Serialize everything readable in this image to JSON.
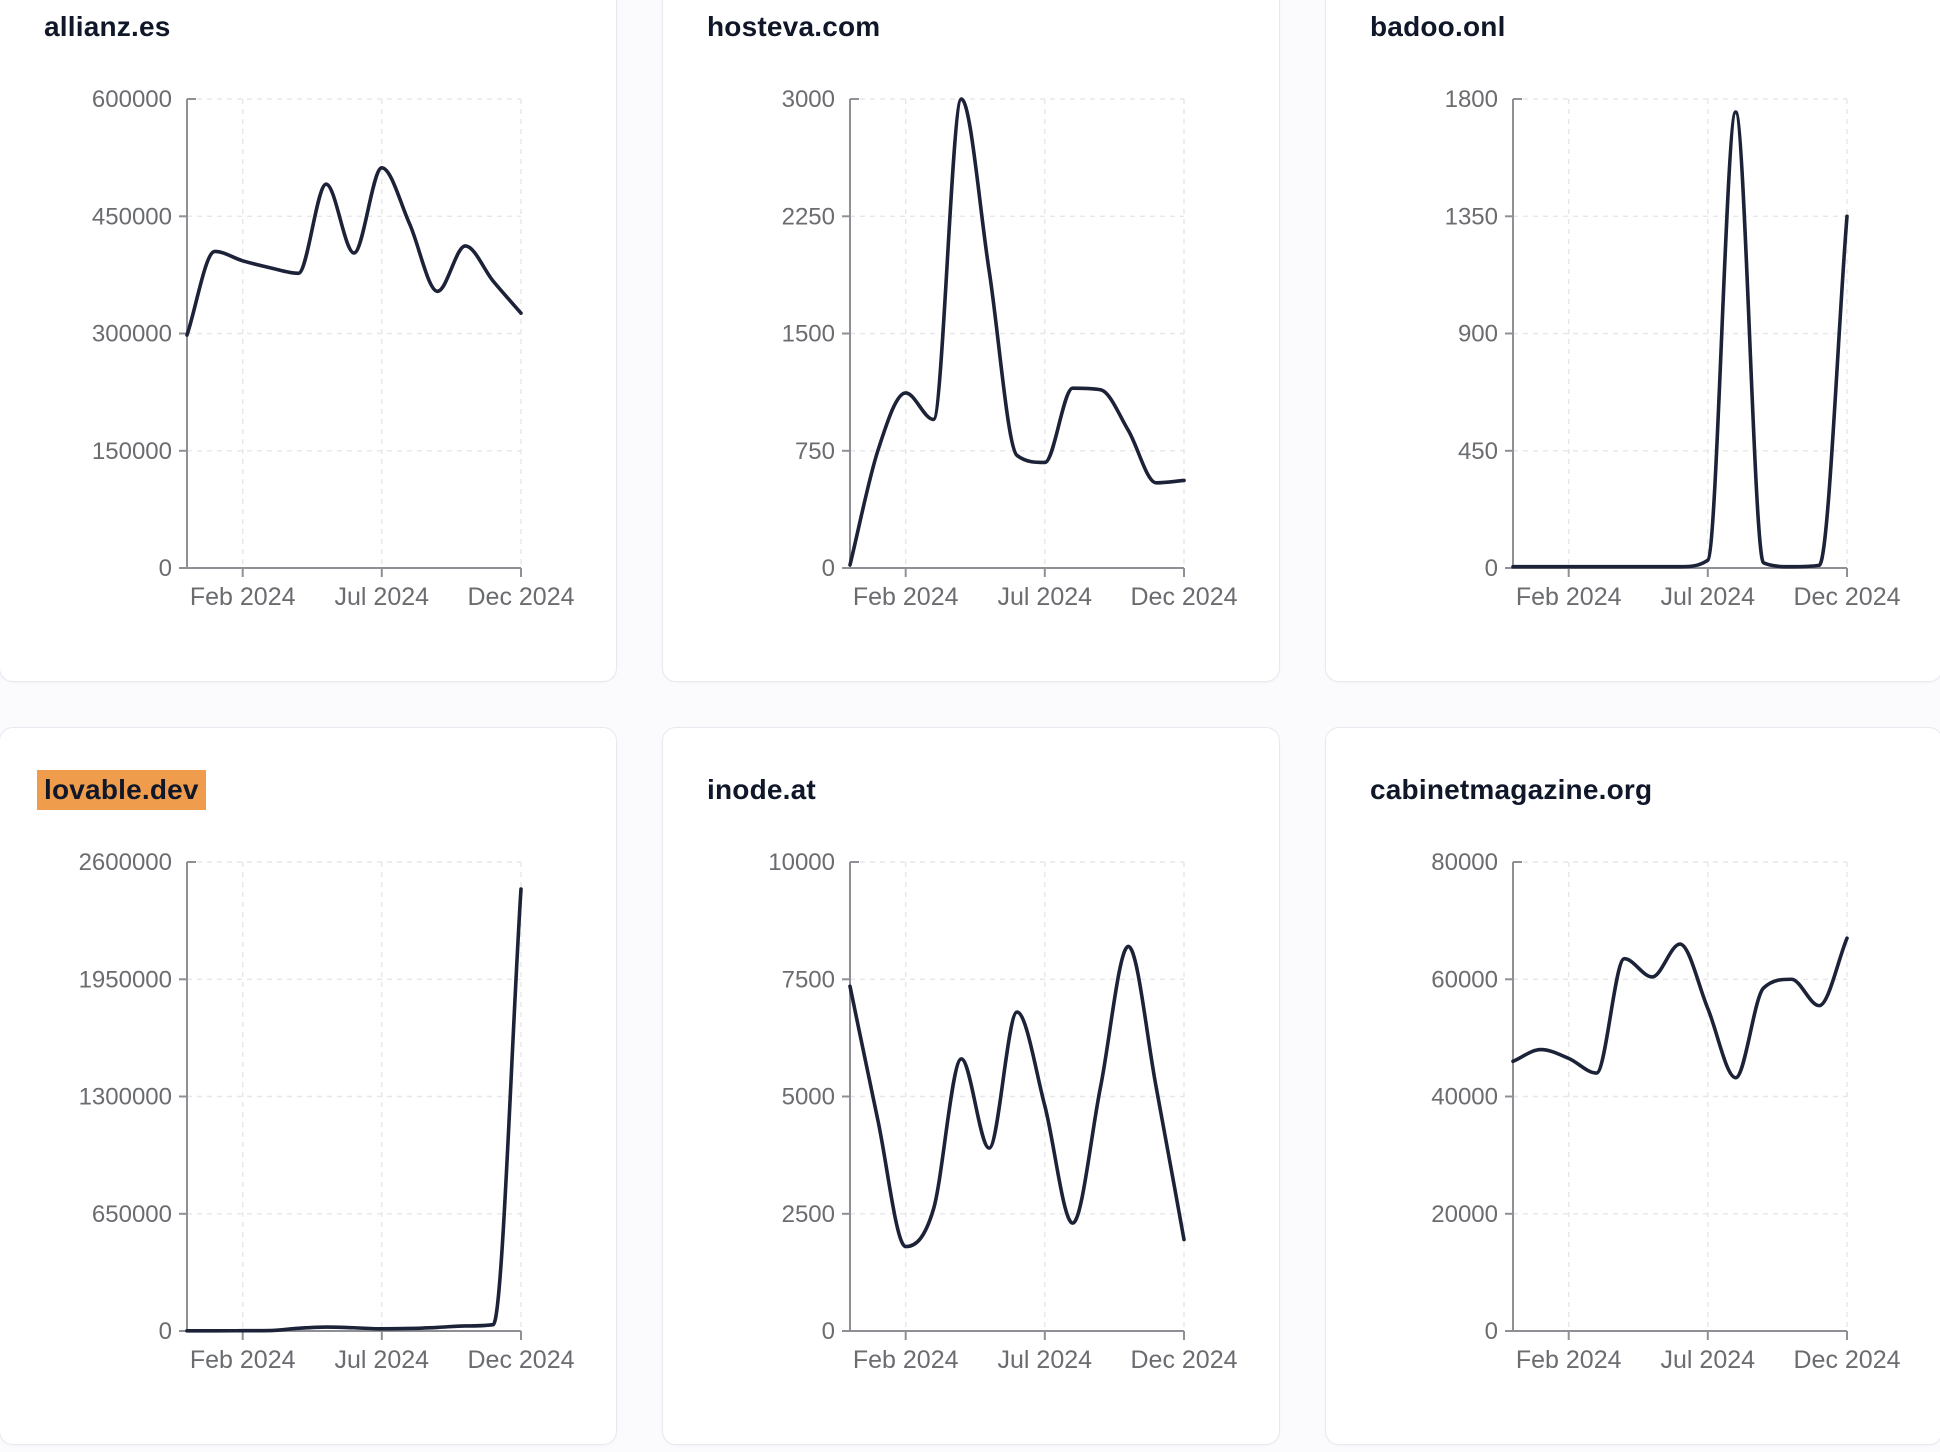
{
  "style": {
    "page_bg": "#fbfbfd",
    "card_bg": "#ffffff",
    "card_border": "#e7e9f0",
    "line_color": "#1c2237",
    "axis_color": "#8e9095",
    "tick_label_color": "#6a6c70",
    "grid_color": "#e7e7ea",
    "title_color": "#0f1729",
    "highlight_color": "#ef9d4d"
  },
  "chart_data": [
    {
      "type": "line",
      "title": "allianz.es",
      "highlighted": false,
      "x": [
        "Dec 2023",
        "Jan 2024",
        "Feb 2024",
        "Mar 2024",
        "Apr 2024",
        "May 2024",
        "Jun 2024",
        "Jul 2024",
        "Aug 2024",
        "Sep 2024",
        "Oct 2024",
        "Nov 2024",
        "Dec 2024"
      ],
      "values": [
        298000,
        405000,
        393000,
        384000,
        377000,
        491000,
        403000,
        512000,
        440000,
        354000,
        412000,
        367000,
        326000
      ],
      "ylim": [
        0,
        600000
      ],
      "y_ticks": [
        0,
        150000,
        300000,
        450000,
        600000
      ],
      "x_tick_labels": [
        "Feb 2024",
        "Jul 2024",
        "Dec 2024"
      ],
      "x_tick_indices": [
        2,
        7,
        12
      ],
      "grid": "dashed",
      "legend": "none"
    },
    {
      "type": "line",
      "title": "hosteva.com",
      "highlighted": false,
      "x": [
        "Dec 2023",
        "Jan 2024",
        "Feb 2024",
        "Mar 2024",
        "Apr 2024",
        "May 2024",
        "Jun 2024",
        "Jul 2024",
        "Aug 2024",
        "Sep 2024",
        "Oct 2024",
        "Nov 2024",
        "Dec 2024"
      ],
      "values": [
        20,
        750,
        1120,
        950,
        3000,
        1900,
        720,
        675,
        1150,
        1140,
        880,
        545,
        560
      ],
      "ylim": [
        0,
        3000
      ],
      "y_ticks": [
        0,
        750,
        1500,
        2250,
        3000
      ],
      "x_tick_labels": [
        "Feb 2024",
        "Jul 2024",
        "Dec 2024"
      ],
      "x_tick_indices": [
        2,
        7,
        12
      ],
      "grid": "dashed",
      "legend": "none"
    },
    {
      "type": "line",
      "title": "badoo.onl",
      "highlighted": false,
      "x": [
        "Dec 2023",
        "Jan 2024",
        "Feb 2024",
        "Mar 2024",
        "Apr 2024",
        "May 2024",
        "Jun 2024",
        "Jul 2024",
        "Aug 2024",
        "Sep 2024",
        "Oct 2024",
        "Nov 2024",
        "Dec 2024"
      ],
      "values": [
        5,
        5,
        5,
        5,
        5,
        5,
        5,
        30,
        1750,
        20,
        5,
        10,
        1350
      ],
      "ylim": [
        0,
        1800
      ],
      "y_ticks": [
        0,
        450,
        900,
        1350,
        1800
      ],
      "x_tick_labels": [
        "Feb 2024",
        "Jul 2024",
        "Dec 2024"
      ],
      "x_tick_indices": [
        2,
        7,
        12
      ],
      "grid": "dashed",
      "legend": "none"
    },
    {
      "type": "line",
      "title": "lovable.dev",
      "highlighted": true,
      "x": [
        "Dec 2023",
        "Jan 2024",
        "Feb 2024",
        "Mar 2024",
        "Apr 2024",
        "May 2024",
        "Jun 2024",
        "Jul 2024",
        "Aug 2024",
        "Sep 2024",
        "Oct 2024",
        "Nov 2024",
        "Dec 2024"
      ],
      "values": [
        1000,
        1200,
        1500,
        2500,
        15000,
        22000,
        18000,
        12000,
        14000,
        20000,
        28000,
        35000,
        2450000
      ],
      "ylim": [
        0,
        2600000
      ],
      "y_ticks": [
        0,
        650000,
        1300000,
        1950000,
        2600000
      ],
      "x_tick_labels": [
        "Feb 2024",
        "Jul 2024",
        "Dec 2024"
      ],
      "x_tick_indices": [
        2,
        7,
        12
      ],
      "grid": "dashed",
      "legend": "none"
    },
    {
      "type": "line",
      "title": "inode.at",
      "highlighted": false,
      "x": [
        "Dec 2023",
        "Jan 2024",
        "Feb 2024",
        "Mar 2024",
        "Apr 2024",
        "May 2024",
        "Jun 2024",
        "Jul 2024",
        "Aug 2024",
        "Sep 2024",
        "Oct 2024",
        "Nov 2024",
        "Dec 2024"
      ],
      "values": [
        7350,
        4500,
        1800,
        2600,
        5800,
        3900,
        6800,
        4800,
        2300,
        5200,
        8200,
        5200,
        1950
      ],
      "ylim": [
        0,
        10000
      ],
      "y_ticks": [
        0,
        2500,
        5000,
        7500,
        10000
      ],
      "x_tick_labels": [
        "Feb 2024",
        "Jul 2024",
        "Dec 2024"
      ],
      "x_tick_indices": [
        2,
        7,
        12
      ],
      "grid": "dashed",
      "legend": "none"
    },
    {
      "type": "line",
      "title": "cabinetmagazine.org",
      "highlighted": false,
      "x": [
        "Dec 2023",
        "Jan 2024",
        "Feb 2024",
        "Mar 2024",
        "Apr 2024",
        "May 2024",
        "Jun 2024",
        "Jul 2024",
        "Aug 2024",
        "Sep 2024",
        "Oct 2024",
        "Nov 2024",
        "Dec 2024"
      ],
      "values": [
        46000,
        48000,
        46500,
        44000,
        63500,
        60400,
        66000,
        55000,
        43200,
        58500,
        60000,
        55500,
        67000
      ],
      "ylim": [
        0,
        80000
      ],
      "y_ticks": [
        0,
        20000,
        40000,
        60000,
        80000
      ],
      "x_tick_labels": [
        "Feb 2024",
        "Jul 2024",
        "Dec 2024"
      ],
      "x_tick_indices": [
        2,
        7,
        12
      ],
      "grid": "dashed",
      "legend": "none"
    }
  ]
}
